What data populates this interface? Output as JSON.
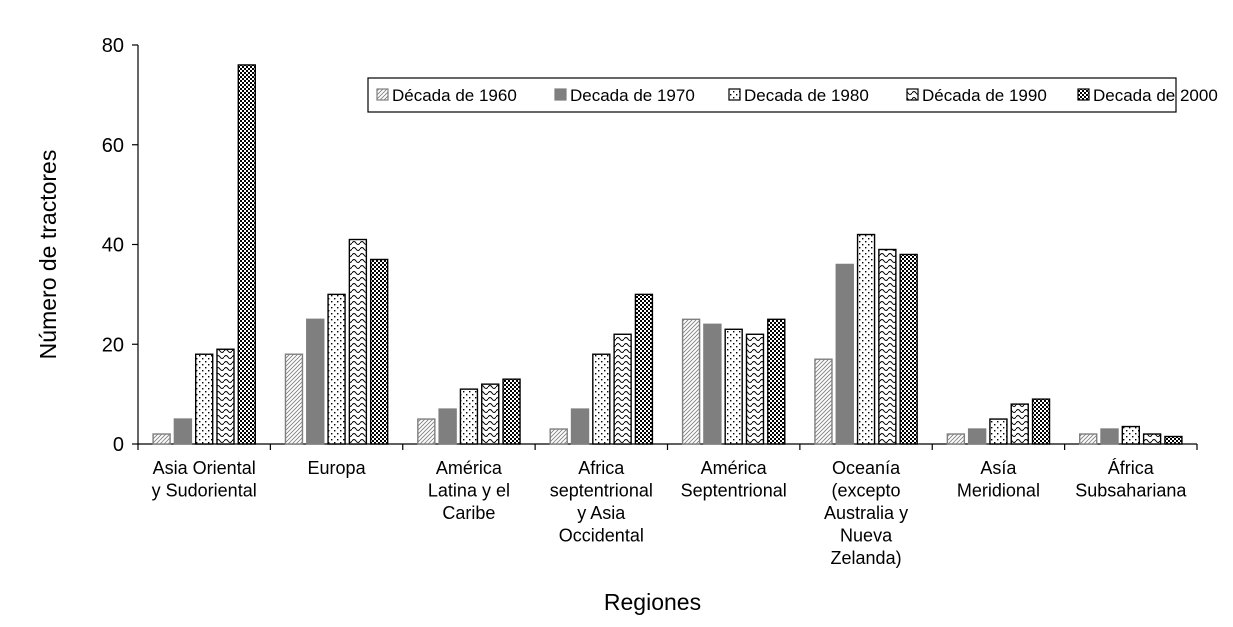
{
  "chart_data": {
    "type": "bar",
    "title": "",
    "xlabel": "Regiones",
    "ylabel": "Número de tractores",
    "ylim": [
      0,
      80
    ],
    "yticks": [
      "0",
      "20",
      "40",
      "60",
      "80"
    ],
    "grid": false,
    "legend_position": "top-right",
    "categories": [
      "Asia Oriental\ny Sudoriental",
      "Europa",
      "América\nLatina y el\nCaribe",
      "Africa\nseptentrional\ny Asia\nOccidental",
      "América\nSeptentrional",
      "Oceanía\n(excepto\nAustralia y\nNueva\nZelanda)",
      "Asía\nMeridional",
      "África\nSubsahariana"
    ],
    "series": [
      {
        "name": "Década de 1960",
        "values": [
          2,
          18,
          5,
          3,
          25,
          17,
          2,
          2
        ],
        "pattern": "diag-fine",
        "color": "#7f7f7f"
      },
      {
        "name": "Decada de 1970",
        "values": [
          5,
          25,
          7,
          7,
          24,
          36,
          3,
          3
        ],
        "pattern": "solid",
        "color": "#7f7f7f"
      },
      {
        "name": "Decada de 1980",
        "values": [
          18,
          30,
          11,
          18,
          23,
          42,
          5,
          3.5
        ],
        "pattern": "dots",
        "color": "#000000"
      },
      {
        "name": "Década de 1990",
        "values": [
          19,
          41,
          12,
          22,
          22,
          39,
          8,
          2
        ],
        "pattern": "wave",
        "color": "#000000"
      },
      {
        "name": "Decada de 2000",
        "values": [
          76,
          37,
          13,
          30,
          25,
          38,
          9,
          1.5
        ],
        "pattern": "checker",
        "color": "#000000"
      }
    ]
  }
}
